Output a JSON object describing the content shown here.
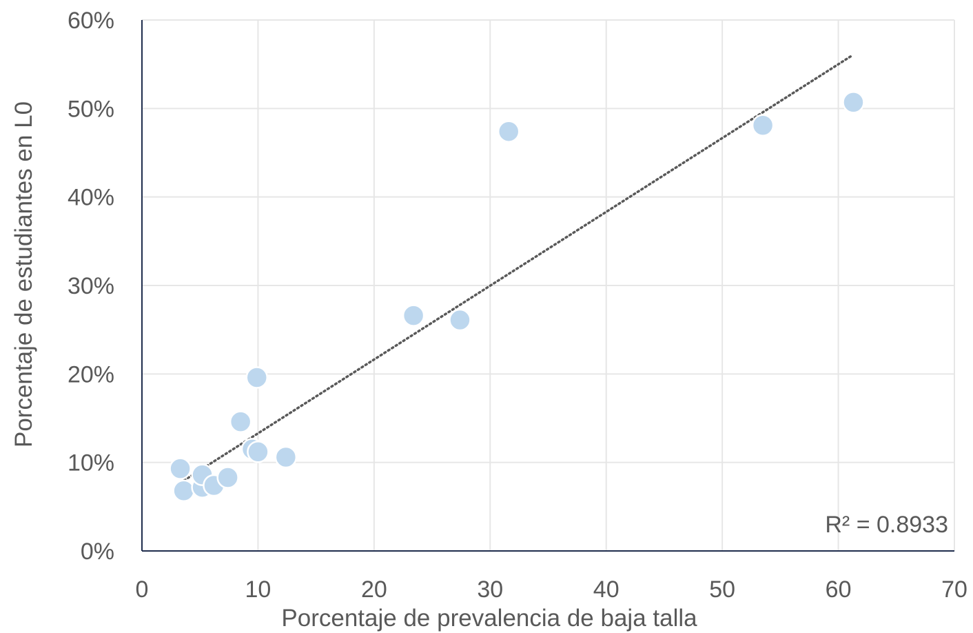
{
  "chart_data": {
    "type": "scatter",
    "title": "",
    "xlabel": "Porcentaje de prevalencia de baja talla",
    "ylabel": "Porcentaje de estudiantes en L0",
    "xlim": [
      0,
      70
    ],
    "ylim": [
      0,
      60
    ],
    "x_ticks": [
      0,
      10,
      20,
      30,
      40,
      50,
      60,
      70
    ],
    "x_tick_labels": [
      "0",
      "10",
      "20",
      "30",
      "40",
      "50",
      "60",
      "70"
    ],
    "y_ticks": [
      0,
      10,
      20,
      30,
      40,
      50,
      60
    ],
    "y_tick_labels": [
      "0%",
      "10%",
      "20%",
      "30%",
      "40%",
      "50%",
      "60%"
    ],
    "grid": true,
    "legend": "none",
    "point_color": "#bdd7ee",
    "trendline_color": "#595959",
    "axis_color": "#1f2d4d",
    "series": [
      {
        "points": [
          {
            "x": 3.3,
            "y": 9.3
          },
          {
            "x": 3.6,
            "y": 6.8
          },
          {
            "x": 5.2,
            "y": 7.2
          },
          {
            "x": 5.2,
            "y": 8.6
          },
          {
            "x": 6.2,
            "y": 7.4
          },
          {
            "x": 7.4,
            "y": 8.3
          },
          {
            "x": 8.5,
            "y": 14.6
          },
          {
            "x": 9.5,
            "y": 11.5
          },
          {
            "x": 9.9,
            "y": 19.6
          },
          {
            "x": 10.0,
            "y": 11.2
          },
          {
            "x": 12.4,
            "y": 10.6
          },
          {
            "x": 23.4,
            "y": 26.6
          },
          {
            "x": 27.4,
            "y": 26.1
          },
          {
            "x": 31.6,
            "y": 47.4
          },
          {
            "x": 53.5,
            "y": 48.1
          },
          {
            "x": 61.3,
            "y": 50.7
          }
        ]
      }
    ],
    "trendline": {
      "type": "linear",
      "x_start": 3.3,
      "y_start": 7.7,
      "x_end": 61.2,
      "y_end": 56.0
    },
    "annotations": [
      {
        "text": "R² = 0.8933",
        "position": "bottom-right"
      }
    ]
  }
}
